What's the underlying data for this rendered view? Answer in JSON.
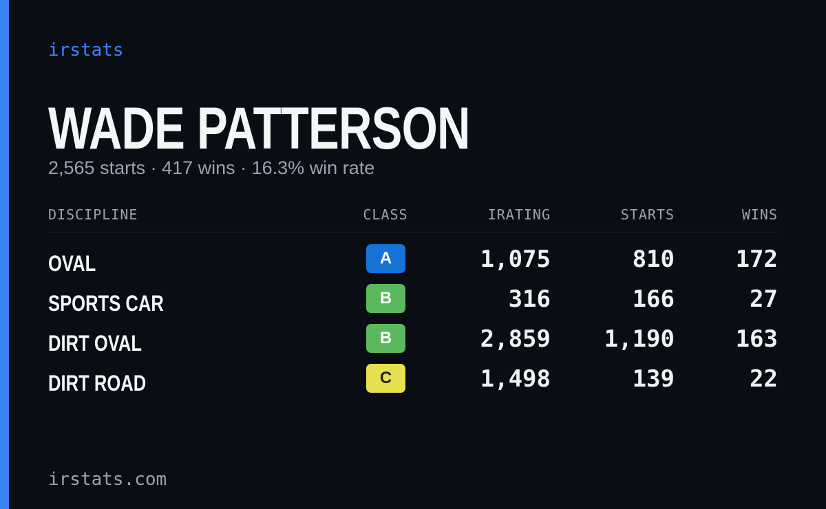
{
  "brand": "irstats",
  "driver": {
    "name": "WADE PATTERSON",
    "summary": "2,565 starts · 417 wins · 16.3% win rate"
  },
  "table": {
    "headers": [
      "DISCIPLINE",
      "CLASS",
      "IRATING",
      "STARTS",
      "WINS"
    ],
    "rows": [
      {
        "discipline": "OVAL",
        "class": "A",
        "class_color": "#1672d6",
        "irating": "1,075",
        "starts": "810",
        "wins": "172"
      },
      {
        "discipline": "SPORTS CAR",
        "class": "B",
        "class_color": "#5cb85c",
        "irating": "316",
        "starts": "166",
        "wins": "27"
      },
      {
        "discipline": "DIRT OVAL",
        "class": "B",
        "class_color": "#5cb85c",
        "irating": "2,859",
        "starts": "1,190",
        "wins": "163"
      },
      {
        "discipline": "DIRT ROAD",
        "class": "C",
        "class_color": "#e8e04e",
        "irating": "1,498",
        "starts": "139",
        "wins": "22"
      }
    ]
  },
  "footer": "irstats.com"
}
